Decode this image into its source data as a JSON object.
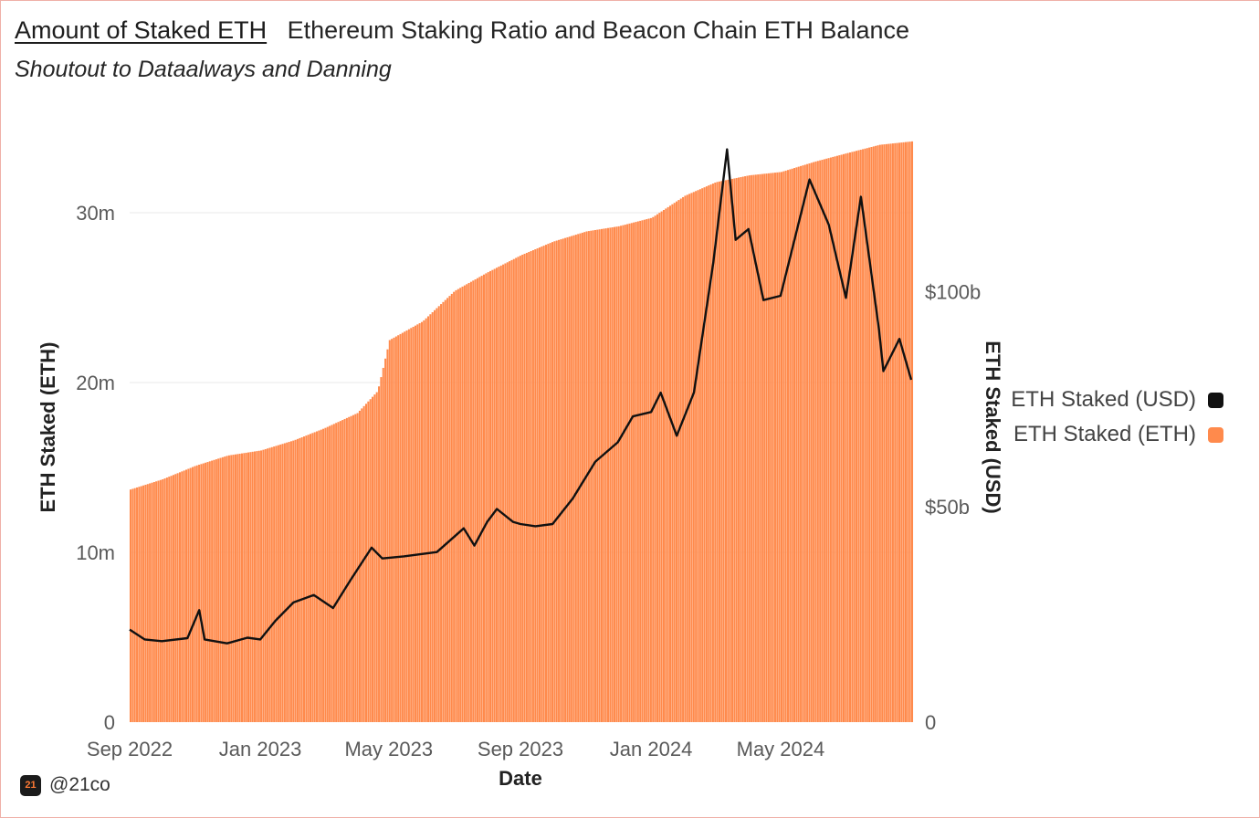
{
  "header": {
    "title": "Amount of Staked ETH",
    "subtitle": "Ethereum Staking Ratio and Beacon Chain ETH Balance",
    "byline": "Shoutout to Dataalways and Danning"
  },
  "legend": {
    "usd_label": "ETH Staked (USD)",
    "eth_label": "ETH Staked (ETH)"
  },
  "footer": {
    "handle": "@21co",
    "logo_text": "21"
  },
  "colors": {
    "eth_area": "#ff8a4c",
    "usd_line": "#111111",
    "grid": "#e9e9e9",
    "axis_text": "#5a5a5a"
  },
  "chart_data": {
    "type": "bar",
    "xlabel": "Date",
    "ylabel_left": "ETH Staked (ETH)",
    "ylabel_right": "ETH Staked (USD)",
    "ylim_left": [
      0,
      35000000
    ],
    "ylim_right": [
      0,
      138000000000
    ],
    "x_range": [
      "2022-09-01",
      "2024-08-31"
    ],
    "x_ticks": [
      {
        "date": "2022-09-01",
        "label": "Sep 2022"
      },
      {
        "date": "2023-01-01",
        "label": "Jan 2023"
      },
      {
        "date": "2023-05-01",
        "label": "May 2023"
      },
      {
        "date": "2023-09-01",
        "label": "Sep 2023"
      },
      {
        "date": "2024-01-01",
        "label": "Jan 2024"
      },
      {
        "date": "2024-05-01",
        "label": "May 2024"
      }
    ],
    "y_ticks_left": [
      {
        "value": 0,
        "label": "0"
      },
      {
        "value": 10000000,
        "label": "10m"
      },
      {
        "value": 20000000,
        "label": "20m"
      },
      {
        "value": 30000000,
        "label": "30m"
      }
    ],
    "y_ticks_right": [
      {
        "value": 0,
        "label": "0"
      },
      {
        "value": 50000000000,
        "label": "$50b"
      },
      {
        "value": 100000000000,
        "label": "$100b"
      }
    ],
    "legend_position": "right",
    "grid": true,
    "series": [
      {
        "name": "ETH Staked (ETH)",
        "type": "bar",
        "axis": "left",
        "points": [
          [
            "2022-09-01",
            13700000
          ],
          [
            "2022-10-01",
            14300000
          ],
          [
            "2022-11-01",
            15100000
          ],
          [
            "2022-12-01",
            15700000
          ],
          [
            "2023-01-01",
            16000000
          ],
          [
            "2023-02-01",
            16600000
          ],
          [
            "2023-03-01",
            17300000
          ],
          [
            "2023-04-01",
            18200000
          ],
          [
            "2023-04-20",
            19500000
          ],
          [
            "2023-05-01",
            22500000
          ],
          [
            "2023-06-01",
            23600000
          ],
          [
            "2023-07-01",
            25400000
          ],
          [
            "2023-08-01",
            26500000
          ],
          [
            "2023-09-01",
            27500000
          ],
          [
            "2023-10-01",
            28300000
          ],
          [
            "2023-11-01",
            28900000
          ],
          [
            "2023-12-01",
            29200000
          ],
          [
            "2024-01-01",
            29700000
          ],
          [
            "2024-02-01",
            31000000
          ],
          [
            "2024-03-01",
            31800000
          ],
          [
            "2024-04-01",
            32200000
          ],
          [
            "2024-05-01",
            32400000
          ],
          [
            "2024-06-01",
            33000000
          ],
          [
            "2024-07-01",
            33500000
          ],
          [
            "2024-08-01",
            34000000
          ],
          [
            "2024-08-31",
            34200000
          ]
        ]
      },
      {
        "name": "ETH Staked (USD)",
        "type": "line",
        "axis": "right",
        "points": [
          [
            "2022-09-01",
            21500000000
          ],
          [
            "2022-09-15",
            19200000000
          ],
          [
            "2022-10-01",
            18800000000
          ],
          [
            "2022-10-25",
            19500000000
          ],
          [
            "2022-11-05",
            26000000000
          ],
          [
            "2022-11-10",
            19200000000
          ],
          [
            "2022-12-01",
            18300000000
          ],
          [
            "2022-12-20",
            19600000000
          ],
          [
            "2023-01-01",
            19200000000
          ],
          [
            "2023-01-15",
            23500000000
          ],
          [
            "2023-02-01",
            27800000000
          ],
          [
            "2023-02-20",
            29500000000
          ],
          [
            "2023-03-10",
            26500000000
          ],
          [
            "2023-03-25",
            32500000000
          ],
          [
            "2023-04-15",
            40500000000
          ],
          [
            "2023-04-25",
            38000000000
          ],
          [
            "2023-05-15",
            38500000000
          ],
          [
            "2023-06-15",
            39500000000
          ],
          [
            "2023-07-10",
            45000000000
          ],
          [
            "2023-07-20",
            41000000000
          ],
          [
            "2023-08-01",
            46500000000
          ],
          [
            "2023-08-10",
            49500000000
          ],
          [
            "2023-08-25",
            46500000000
          ],
          [
            "2023-09-01",
            46000000000
          ],
          [
            "2023-09-15",
            45500000000
          ],
          [
            "2023-10-01",
            46000000000
          ],
          [
            "2023-10-20",
            52000000000
          ],
          [
            "2023-11-10",
            60500000000
          ],
          [
            "2023-12-01",
            65000000000
          ],
          [
            "2023-12-15",
            71000000000
          ],
          [
            "2024-01-01",
            72000000000
          ],
          [
            "2024-01-10",
            76500000000
          ],
          [
            "2024-01-25",
            66500000000
          ],
          [
            "2024-02-10",
            76500000000
          ],
          [
            "2024-02-28",
            106500000000
          ],
          [
            "2024-03-12",
            133000000000
          ],
          [
            "2024-03-20",
            112000000000
          ],
          [
            "2024-04-01",
            114500000000
          ],
          [
            "2024-04-15",
            98000000000
          ],
          [
            "2024-05-01",
            99000000000
          ],
          [
            "2024-05-20",
            118000000000
          ],
          [
            "2024-05-28",
            126000000000
          ],
          [
            "2024-06-15",
            115500000000
          ],
          [
            "2024-07-01",
            98500000000
          ],
          [
            "2024-07-15",
            122000000000
          ],
          [
            "2024-08-01",
            91000000000
          ],
          [
            "2024-08-05",
            81500000000
          ],
          [
            "2024-08-20",
            89000000000
          ],
          [
            "2024-08-31",
            79500000000
          ]
        ]
      }
    ]
  }
}
